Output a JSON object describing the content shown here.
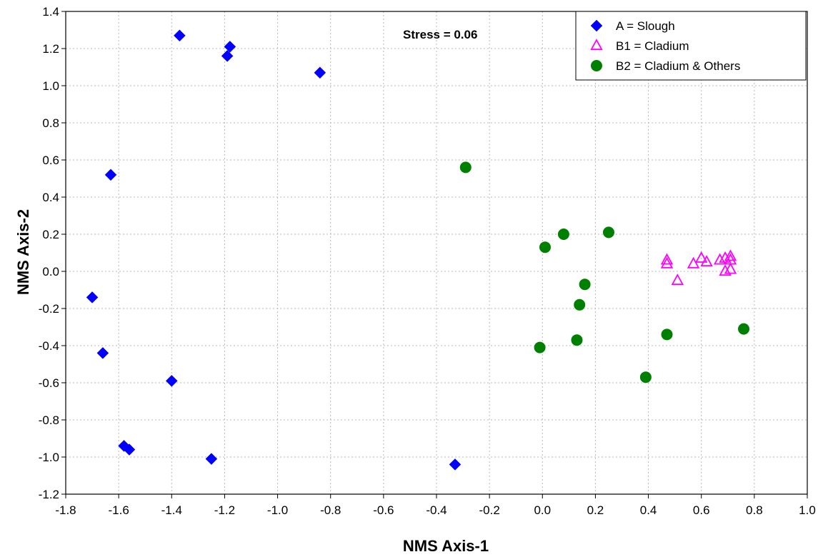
{
  "chart_data": {
    "type": "scatter",
    "title": "",
    "xlabel": "NMS Axis-1",
    "ylabel": "NMS Axis-2",
    "xlim": [
      -1.8,
      1.0
    ],
    "ylim": [
      -1.2,
      1.4
    ],
    "xticks": [
      -1.8,
      -1.6,
      -1.4,
      -1.2,
      -1.0,
      -0.8,
      -0.6,
      -0.4,
      -0.2,
      0.0,
      0.2,
      0.4,
      0.6,
      0.8,
      1.0
    ],
    "xtick_labels": [
      "-1.8",
      "-1.6",
      "-1.4",
      "-1.2",
      "-1.0",
      "-0.8",
      "-0.6",
      "-0.4",
      "-0.2",
      "0.0",
      "0.2",
      "0.4",
      "0.6",
      "0.8",
      "1.0"
    ],
    "yticks": [
      -1.2,
      -1.0,
      -0.8,
      -0.6,
      -0.4,
      -0.2,
      0.0,
      0.2,
      0.4,
      0.6,
      0.8,
      1.0,
      1.2,
      1.4
    ],
    "ytick_labels": [
      "-1.2",
      "-1.0",
      "-0.8",
      "-0.6",
      "-0.4",
      "-0.2",
      "0.0",
      "0.2",
      "0.4",
      "0.6",
      "0.8",
      "1.0",
      "1.2",
      "1.4"
    ],
    "grid": true,
    "legend_position": "top-right",
    "annotation": "Stress = 0.06",
    "series": [
      {
        "name": "A = Slough",
        "marker": "diamond",
        "color": "#0000ff",
        "points": [
          {
            "x": -1.37,
            "y": 1.27
          },
          {
            "x": -1.18,
            "y": 1.21
          },
          {
            "x": -1.19,
            "y": 1.16
          },
          {
            "x": -0.84,
            "y": 1.07
          },
          {
            "x": -1.63,
            "y": 0.52
          },
          {
            "x": -1.7,
            "y": -0.14
          },
          {
            "x": -1.66,
            "y": -0.44
          },
          {
            "x": -1.4,
            "y": -0.59
          },
          {
            "x": -1.58,
            "y": -0.94
          },
          {
            "x": -1.56,
            "y": -0.96
          },
          {
            "x": -1.25,
            "y": -1.01
          },
          {
            "x": -0.33,
            "y": -1.04
          }
        ]
      },
      {
        "name": "B1 = Cladium",
        "marker": "triangle-open",
        "color": "#ff00ff",
        "points": [
          {
            "x": 0.47,
            "y": 0.06
          },
          {
            "x": 0.47,
            "y": 0.04
          },
          {
            "x": 0.51,
            "y": -0.05
          },
          {
            "x": 0.57,
            "y": 0.04
          },
          {
            "x": 0.6,
            "y": 0.07
          },
          {
            "x": 0.62,
            "y": 0.05
          },
          {
            "x": 0.67,
            "y": 0.06
          },
          {
            "x": 0.69,
            "y": 0.07
          },
          {
            "x": 0.71,
            "y": 0.08
          },
          {
            "x": 0.71,
            "y": 0.06
          },
          {
            "x": 0.69,
            "y": 0.0
          },
          {
            "x": 0.71,
            "y": 0.01
          }
        ]
      },
      {
        "name": "B2 = Cladium & Others",
        "marker": "circle-filled",
        "color": "#008000",
        "points": [
          {
            "x": -0.29,
            "y": 0.56
          },
          {
            "x": 0.25,
            "y": 0.21
          },
          {
            "x": 0.08,
            "y": 0.2
          },
          {
            "x": 0.01,
            "y": 0.13
          },
          {
            "x": 0.16,
            "y": -0.07
          },
          {
            "x": 0.14,
            "y": -0.18
          },
          {
            "x": 0.47,
            "y": -0.34
          },
          {
            "x": 0.13,
            "y": -0.37
          },
          {
            "x": -0.01,
            "y": -0.41
          },
          {
            "x": 0.76,
            "y": -0.31
          },
          {
            "x": 0.39,
            "y": -0.57
          }
        ]
      }
    ]
  }
}
